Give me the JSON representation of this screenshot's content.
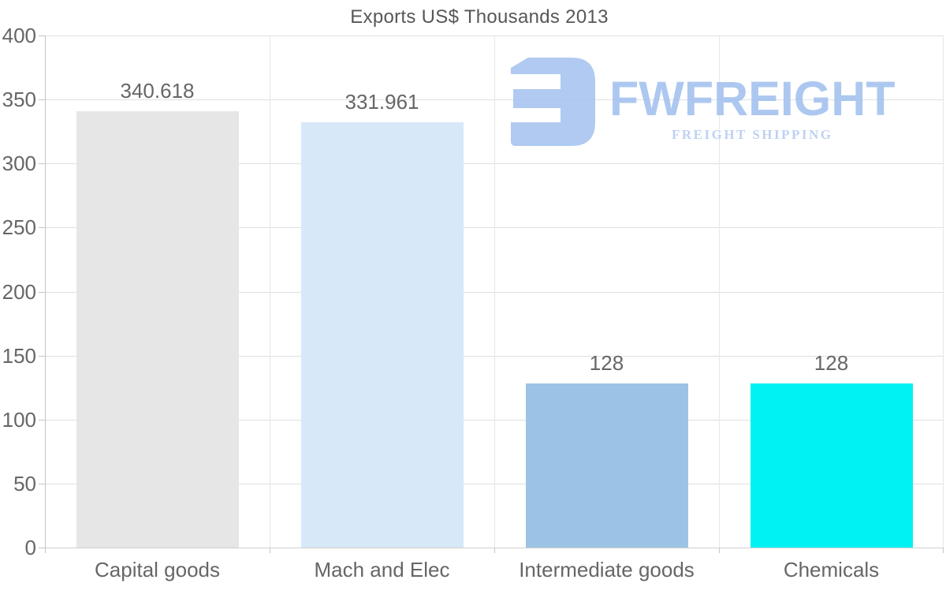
{
  "logo": {
    "name": "FWFREIGHT",
    "tagline": "FREIGHT SHIPPING",
    "mark_color": "#a8c5f0",
    "text_color": "#a5c3ef",
    "tagline_color": "#b7cdf1"
  },
  "chart_data": {
    "type": "bar",
    "title": "Exports US$ Thousands 2013",
    "categories": [
      "Capital goods",
      "Mach and Elec",
      "Intermediate goods",
      "Chemicals"
    ],
    "values": [
      340.618,
      331.961,
      128,
      128
    ],
    "value_labels": [
      "340.618",
      "331.961",
      "128",
      "128"
    ],
    "bar_colors": [
      "#e6e6e6",
      "#d7e8f9",
      "#9cc3e5",
      "#00f2f2"
    ],
    "xlabel": "",
    "ylabel": "",
    "ylim": [
      0,
      400
    ],
    "yticks": [
      0,
      50,
      100,
      150,
      200,
      250,
      300,
      350,
      400
    ],
    "grid": true,
    "legend": false,
    "text_color": "#666666",
    "gridline_color": "#e0e0e0",
    "axis_color": "#c6c6c6"
  }
}
